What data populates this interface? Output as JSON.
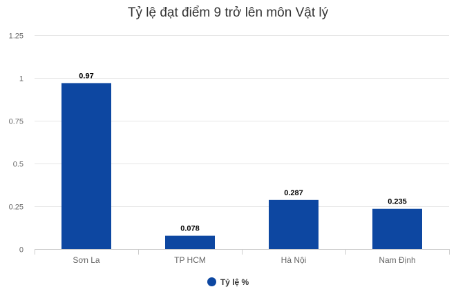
{
  "chart_data": {
    "type": "bar",
    "title": "Tỷ lệ đạt điểm 9 trở lên môn Vật lý",
    "categories": [
      "Sơn La",
      "TP HCM",
      "Hà Nội",
      "Nam Định"
    ],
    "series": [
      {
        "name": "Tỷ lệ %",
        "values": [
          0.97,
          0.078,
          0.287,
          0.235
        ],
        "color": "#0d47a1"
      }
    ],
    "data_labels": [
      "0.97",
      "0.078",
      "0.287",
      "0.235"
    ],
    "y_ticks": [
      "0",
      "0.25",
      "0.5",
      "0.75",
      "1",
      "1.25"
    ],
    "ylim": [
      0,
      1.25
    ],
    "grid": true,
    "legend_position": "bottom"
  }
}
